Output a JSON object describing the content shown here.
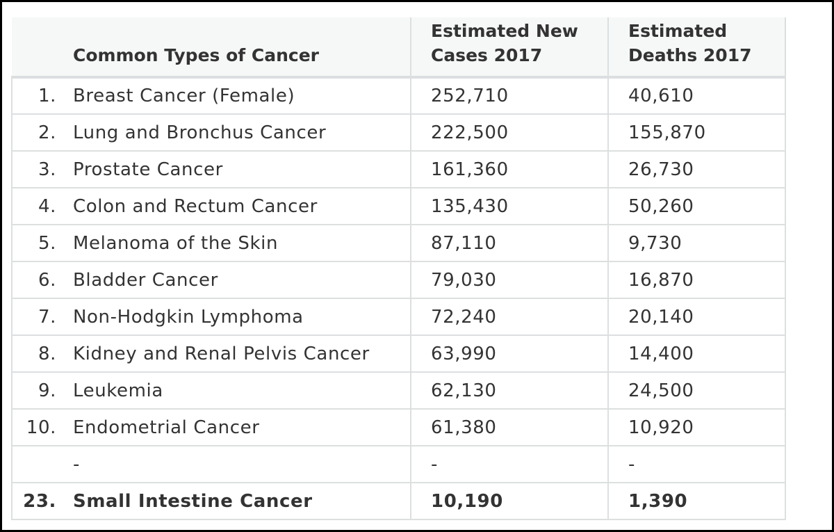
{
  "table": {
    "headers": {
      "number": "",
      "type": "Common Types of Cancer",
      "cases_line1": "Estimated New",
      "cases_line2": "Cases 2017",
      "deaths_line1": "Estimated",
      "deaths_line2": "Deaths 2017"
    },
    "rows": [
      {
        "rank": "1.",
        "type": "Breast Cancer (Female)",
        "cases": "252,710",
        "deaths": "40,610",
        "bold": false
      },
      {
        "rank": "2.",
        "type": "Lung and Bronchus Cancer",
        "cases": "222,500",
        "deaths": "155,870",
        "bold": false
      },
      {
        "rank": "3.",
        "type": "Prostate Cancer",
        "cases": "161,360",
        "deaths": "26,730",
        "bold": false
      },
      {
        "rank": "4.",
        "type": "Colon and Rectum Cancer",
        "cases": "135,430",
        "deaths": "50,260",
        "bold": false
      },
      {
        "rank": "5.",
        "type": "Melanoma of the Skin",
        "cases": "87,110",
        "deaths": "9,730",
        "bold": false
      },
      {
        "rank": "6.",
        "type": "Bladder Cancer",
        "cases": "79,030",
        "deaths": "16,870",
        "bold": false
      },
      {
        "rank": "7.",
        "type": "Non-Hodgkin Lymphoma",
        "cases": "72,240",
        "deaths": "20,140",
        "bold": false
      },
      {
        "rank": "8.",
        "type": "Kidney and Renal Pelvis Cancer",
        "cases": "63,990",
        "deaths": "14,400",
        "bold": false
      },
      {
        "rank": "9.",
        "type": "Leukemia",
        "cases": "62,130",
        "deaths": "24,500",
        "bold": false
      },
      {
        "rank": "10.",
        "type": "Endometrial Cancer",
        "cases": "61,380",
        "deaths": "10,920",
        "bold": false
      },
      {
        "rank": "",
        "type": "-",
        "cases": "-",
        "deaths": "-",
        "bold": false
      },
      {
        "rank": "23.",
        "type": "Small Intestine Cancer",
        "cases": "10,190",
        "deaths": "1,390",
        "bold": true
      }
    ]
  }
}
